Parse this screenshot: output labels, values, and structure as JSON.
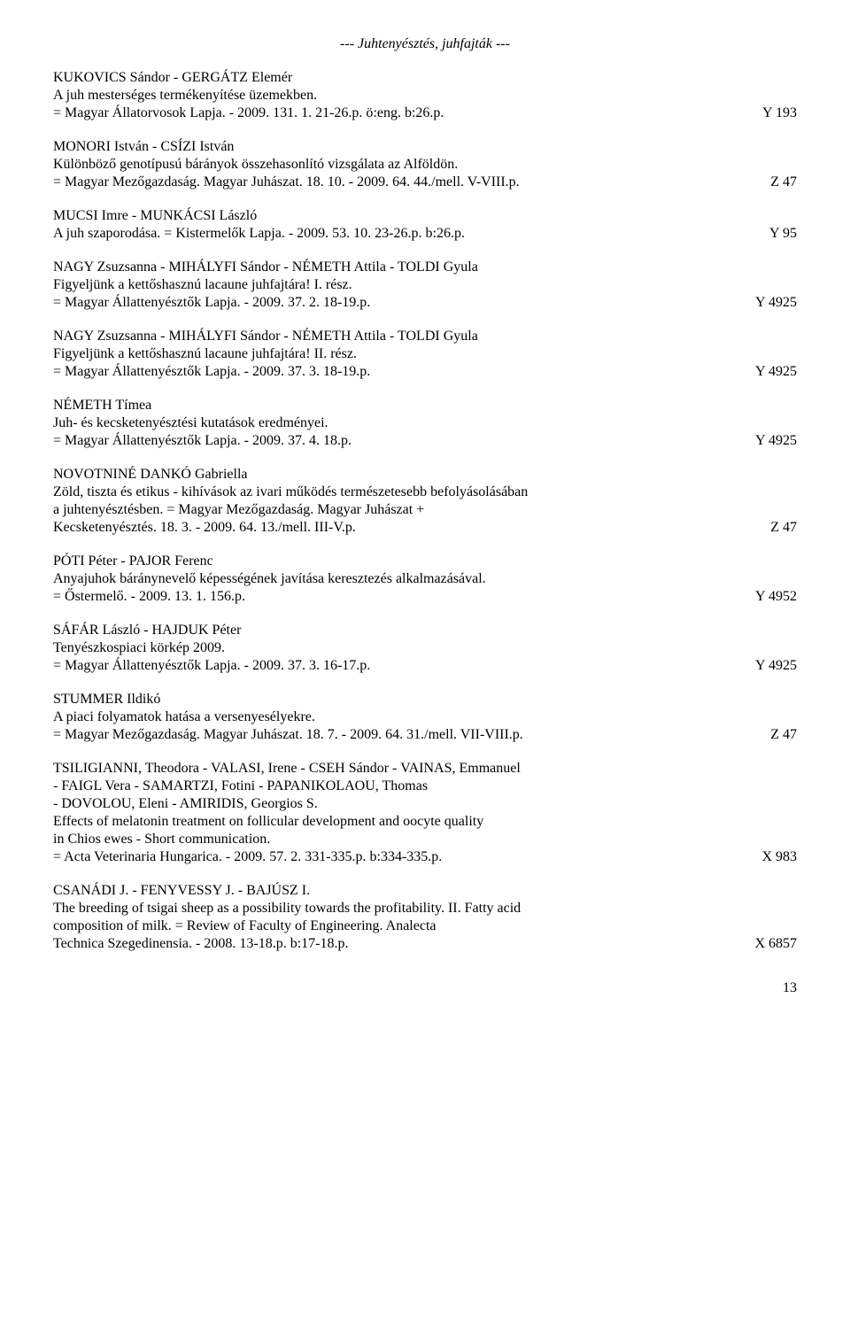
{
  "header": "--- Juhtenyésztés, juhfajták ---",
  "entries": [
    {
      "lines": [
        "KUKOVICS Sándor - GERGÁTZ Elemér",
        "A juh mesterséges termékenyítése üzemekben."
      ],
      "last": "= Magyar Állatorvosok Lapja. - 2009. 131. 1. 21-26.p. ö:eng. b:26.p.",
      "code": "Y 193"
    },
    {
      "lines": [
        "MONORI István - CSÍZI István",
        "Különböző genotípusú bárányok összehasonlító vizsgálata az Alföldön."
      ],
      "last": "= Magyar Mezőgazdaság. Magyar Juhászat. 18. 10. - 2009. 64. 44./mell. V-VIII.p.",
      "code": "Z 47"
    },
    {
      "lines": [
        "MUCSI Imre - MUNKÁCSI László"
      ],
      "last": "A juh szaporodása. = Kistermelők Lapja. - 2009. 53. 10. 23-26.p. b:26.p.",
      "code": "Y 95"
    },
    {
      "lines": [
        "NAGY Zsuzsanna - MIHÁLYFI Sándor - NÉMETH Attila - TOLDI Gyula",
        "Figyeljünk a kettőshasznú lacaune juhfajtára! I. rész."
      ],
      "last": "= Magyar Állattenyésztők Lapja. - 2009. 37. 2. 18-19.p.",
      "code": "Y 4925"
    },
    {
      "lines": [
        "NAGY Zsuzsanna - MIHÁLYFI Sándor - NÉMETH Attila - TOLDI Gyula",
        "Figyeljünk a kettőshasznú lacaune juhfajtára! II. rész."
      ],
      "last": "= Magyar Állattenyésztők Lapja. - 2009. 37. 3. 18-19.p.",
      "code": "Y 4925"
    },
    {
      "lines": [
        "NÉMETH Tímea",
        "Juh- és kecsketenyésztési kutatások eredményei."
      ],
      "last": "= Magyar Állattenyésztők Lapja. - 2009. 37. 4. 18.p.",
      "code": "Y 4925"
    },
    {
      "lines": [
        "NOVOTNINÉ DANKÓ Gabriella",
        "Zöld, tiszta és etikus - kihívások az ivari működés természetesebb befolyásolásában",
        "a juhtenyésztésben. = Magyar Mezőgazdaság. Magyar Juhászat +"
      ],
      "last": "Kecsketenyésztés. 18. 3. - 2009. 64. 13./mell. III-V.p.",
      "code": "Z 47"
    },
    {
      "lines": [
        "PÓTI Péter - PAJOR Ferenc",
        "Anyajuhok báránynevelő képességének javítása keresztezés alkalmazásával."
      ],
      "last": "= Őstermelő. - 2009. 13. 1. 156.p.",
      "code": "Y 4952"
    },
    {
      "lines": [
        "SÁFÁR László - HAJDUK Péter",
        "Tenyészkospiaci körkép 2009."
      ],
      "last": "= Magyar Állattenyésztők Lapja. - 2009. 37. 3. 16-17.p.",
      "code": "Y 4925"
    },
    {
      "lines": [
        "STUMMER Ildikó",
        "A piaci folyamatok hatása a versenyesélyekre."
      ],
      "last": "= Magyar Mezőgazdaság. Magyar Juhászat. 18. 7. - 2009. 64. 31./mell. VII-VIII.p.",
      "code": "Z 47"
    },
    {
      "lines": [
        "TSILIGIANNI, Theodora - VALASI, Irene - CSEH Sándor - VAINAS, Emmanuel",
        "- FAIGL Vera - SAMARTZI, Fotini - PAPANIKOLAOU, Thomas",
        "- DOVOLOU, Eleni - AMIRIDIS, Georgios S.",
        "Effects of melatonin treatment on follicular development and oocyte quality",
        "in Chios ewes - Short communication."
      ],
      "last": "= Acta Veterinaria Hungarica. - 2009. 57. 2. 331-335.p. b:334-335.p.",
      "code": "X 983"
    },
    {
      "lines": [
        "CSANÁDI J. - FENYVESSY J. - BAJÚSZ I.",
        "The breeding of tsigai sheep as a possibility towards the profitability. II. Fatty acid",
        "composition of milk. = Review of Faculty of Engineering. Analecta"
      ],
      "last": "Technica Szegedinensia. - 2008. 13-18.p. b:17-18.p.",
      "code": "X 6857"
    }
  ],
  "pageNumber": "13"
}
